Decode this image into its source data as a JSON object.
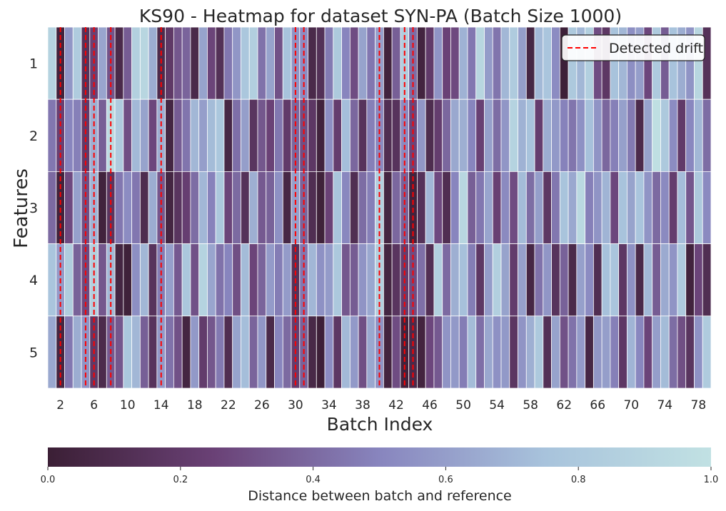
{
  "chart_data": {
    "type": "heatmap",
    "title": "KS90 - Heatmap for dataset SYN-PA (Batch Size 1000)",
    "xlabel": "Batch Index",
    "ylabel": "Features",
    "x_start": 1,
    "x_count": 79,
    "x_tick_labels": [
      "2",
      "6",
      "10",
      "14",
      "18",
      "22",
      "26",
      "30",
      "34",
      "38",
      "42",
      "46",
      "50",
      "54",
      "58",
      "62",
      "66",
      "70",
      "74",
      "78"
    ],
    "rows": [
      {
        "label": "1",
        "values": [
          0.88,
          0.03,
          0.57,
          0.82,
          0.14,
          0.24,
          0.63,
          0.32,
          0.08,
          0.35,
          0.86,
          0.91,
          0.66,
          0.09,
          0.19,
          0.33,
          0.38,
          0.08,
          0.62,
          0.26,
          0.13,
          0.45,
          0.57,
          0.78,
          0.85,
          0.43,
          0.62,
          0.31,
          0.75,
          0.56,
          0.53,
          0.08,
          0.13,
          0.46,
          0.8,
          0.5,
          0.29,
          0.62,
          0.45,
          0.61,
          0.03,
          0.36,
          0.84,
          0.41,
          0.04,
          0.2,
          0.56,
          0.25,
          0.28,
          0.68,
          0.45,
          0.91,
          0.59,
          0.44,
          0.7,
          0.82,
          0.6,
          0.06,
          0.71,
          0.77,
          0.53,
          0.01,
          0.8,
          0.7,
          0.85,
          0.29,
          0.18,
          0.75,
          0.7,
          0.54,
          0.6,
          0.27,
          0.81,
          0.35,
          0.75,
          0.66,
          0.56,
          0.91,
          0.14
        ]
      },
      {
        "label": "2",
        "values": [
          0.45,
          0.24,
          0.5,
          0.48,
          0.2,
          0.67,
          0.36,
          0.95,
          0.82,
          0.3,
          0.71,
          0.62,
          0.27,
          0.67,
          0.05,
          0.35,
          0.44,
          0.7,
          0.6,
          0.72,
          0.78,
          0.06,
          0.42,
          0.6,
          0.16,
          0.33,
          0.25,
          0.45,
          0.2,
          0.39,
          0.3,
          0.18,
          0.03,
          0.54,
          0.22,
          0.73,
          0.39,
          0.15,
          0.48,
          0.52,
          0.11,
          0.15,
          0.52,
          0.26,
          0.57,
          0.1,
          0.22,
          0.39,
          0.64,
          0.67,
          0.5,
          0.24,
          0.61,
          0.41,
          0.57,
          0.88,
          0.68,
          0.75,
          0.22,
          0.66,
          0.58,
          0.49,
          0.44,
          0.55,
          0.74,
          0.56,
          0.39,
          0.48,
          0.61,
          0.46,
          0.09,
          0.62,
          0.98,
          0.8,
          0.53,
          0.2,
          0.51,
          0.7,
          0.41
        ]
      },
      {
        "label": "3",
        "values": [
          0.4,
          0.03,
          0.28,
          0.61,
          0.3,
          0.69,
          0.03,
          0.16,
          0.45,
          0.53,
          0.45,
          0.1,
          0.66,
          0.33,
          0.05,
          0.16,
          0.23,
          0.41,
          0.7,
          0.49,
          0.79,
          0.26,
          0.4,
          0.14,
          0.67,
          0.34,
          0.37,
          0.55,
          0.06,
          0.61,
          0.38,
          0.11,
          0.02,
          0.25,
          0.76,
          0.51,
          0.11,
          0.41,
          0.48,
          0.86,
          0.05,
          0.39,
          0.37,
          0.03,
          0.14,
          0.7,
          0.28,
          0.11,
          0.5,
          0.91,
          0.36,
          0.45,
          0.63,
          0.24,
          0.52,
          0.29,
          0.72,
          0.41,
          0.6,
          0.18,
          0.45,
          0.76,
          0.64,
          0.93,
          0.48,
          0.56,
          0.69,
          0.27,
          0.75,
          0.62,
          0.77,
          0.56,
          0.4,
          0.52,
          0.22,
          0.73,
          0.33,
          0.8,
          0.52
        ]
      },
      {
        "label": "4",
        "values": [
          0.77,
          0.59,
          0.83,
          0.37,
          0.28,
          0.86,
          0.33,
          0.71,
          0.05,
          0.02,
          0.54,
          0.7,
          0.15,
          0.47,
          0.61,
          0.34,
          0.78,
          0.31,
          0.88,
          0.63,
          0.43,
          0.5,
          0.3,
          0.72,
          0.26,
          0.38,
          0.59,
          0.47,
          0.59,
          0.14,
          0.45,
          0.7,
          0.55,
          0.59,
          0.79,
          0.33,
          0.35,
          0.56,
          0.64,
          0.86,
          0.05,
          0.16,
          0.22,
          0.29,
          0.42,
          0.12,
          0.86,
          0.4,
          0.67,
          0.74,
          0.47,
          0.18,
          0.59,
          0.85,
          0.62,
          0.21,
          0.61,
          0.06,
          0.43,
          0.57,
          0.15,
          0.37,
          0.08,
          0.61,
          0.53,
          0.11,
          0.74,
          0.77,
          0.18,
          0.55,
          0.08,
          0.71,
          0.35,
          0.65,
          0.56,
          0.81,
          0.03,
          0.26,
          0.11
        ]
      },
      {
        "label": "5",
        "values": [
          0.64,
          0.05,
          0.45,
          0.66,
          0.56,
          0.19,
          0.09,
          0.34,
          0.33,
          0.78,
          0.7,
          0.36,
          0.15,
          0.58,
          0.43,
          0.31,
          0.05,
          0.58,
          0.21,
          0.33,
          0.46,
          0.11,
          0.62,
          0.73,
          0.38,
          0.57,
          0.08,
          0.5,
          0.4,
          0.22,
          0.37,
          0.07,
          0.01,
          0.53,
          0.18,
          0.71,
          0.58,
          0.3,
          0.64,
          0.56,
          0.04,
          0.29,
          0.03,
          0.08,
          0.04,
          0.27,
          0.34,
          0.56,
          0.58,
          0.47,
          0.72,
          0.42,
          0.64,
          0.55,
          0.58,
          0.17,
          0.56,
          0.67,
          0.8,
          0.13,
          0.62,
          0.31,
          0.43,
          0.59,
          0.06,
          0.57,
          0.6,
          0.48,
          0.18,
          0.69,
          0.51,
          0.26,
          0.6,
          0.72,
          0.41,
          0.3,
          0.16,
          0.55,
          0.82
        ]
      }
    ],
    "drift_batches": [
      2,
      5,
      6,
      8,
      14,
      30,
      31,
      40,
      43,
      44
    ],
    "legend": {
      "label": "Detected drift",
      "placement": "top-right",
      "color": "#ff0000",
      "style": "dashed"
    },
    "colorbar": {
      "label": "Distance between batch and reference",
      "range": [
        0.0,
        1.0
      ],
      "tick_labels": [
        "0.0",
        "0.2",
        "0.4",
        "0.6",
        "0.8",
        "1.0"
      ],
      "colors": [
        "#3b1f35",
        "#6a4176",
        "#8885be",
        "#a8c3dc",
        "#c1e1e3"
      ]
    }
  }
}
